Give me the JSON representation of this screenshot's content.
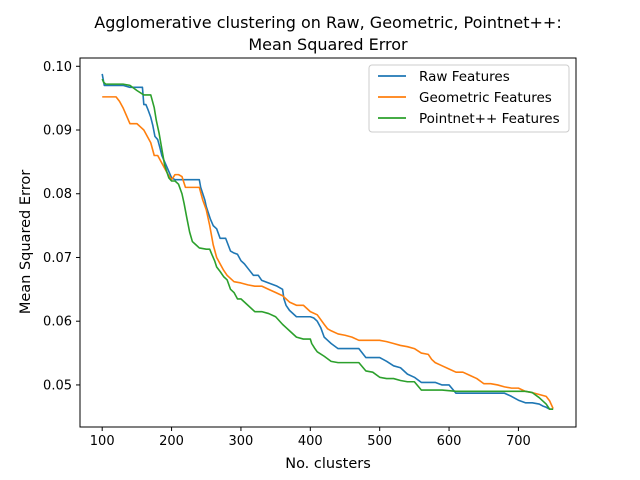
{
  "chart_data": {
    "type": "line",
    "title_line1": "Agglomerative clustering on Raw, Geometric, Pointnet++:",
    "title_line2": "Mean Squared Error",
    "xlabel": "No. clusters",
    "ylabel": "Mean Squared Error",
    "xlim": [
      68,
      783
    ],
    "ylim": [
      0.0434,
      0.1013
    ],
    "xticks": [
      100,
      200,
      300,
      400,
      500,
      600,
      700
    ],
    "yticks": [
      0.05,
      0.06,
      0.07,
      0.08,
      0.09,
      0.1
    ],
    "ytick_labels": [
      "0.05",
      "0.06",
      "0.07",
      "0.08",
      "0.09",
      "0.10"
    ],
    "grid": false,
    "legend_position": "top-right",
    "series": [
      {
        "name": "Raw Features",
        "color": "#1f77b4",
        "x": [
          100,
          103,
          105,
          110,
          120,
          130,
          140,
          150,
          158,
          160,
          163,
          166,
          170,
          173,
          176,
          180,
          183,
          186,
          190,
          194,
          198,
          200,
          205,
          210,
          215,
          225,
          240,
          242,
          245,
          248,
          250,
          253,
          256,
          260,
          265,
          270,
          278,
          285,
          290,
          295,
          300,
          305,
          310,
          318,
          325,
          330,
          340,
          352,
          360,
          362,
          365,
          370,
          380,
          390,
          400,
          405,
          410,
          415,
          420,
          425,
          430,
          440,
          450,
          460,
          470,
          480,
          490,
          500,
          510,
          520,
          530,
          540,
          550,
          560,
          570,
          580,
          590,
          600,
          610,
          620,
          630,
          640,
          650,
          660,
          670,
          680,
          690,
          700,
          710,
          720,
          730,
          735,
          740,
          745,
          750
        ],
        "y": [
          0.0988,
          0.097,
          0.097,
          0.097,
          0.097,
          0.097,
          0.0967,
          0.0967,
          0.0967,
          0.094,
          0.094,
          0.0932,
          0.092,
          0.0907,
          0.089,
          0.0885,
          0.0873,
          0.086,
          0.085,
          0.084,
          0.083,
          0.0825,
          0.0822,
          0.0822,
          0.0822,
          0.0822,
          0.0822,
          0.081,
          0.08,
          0.079,
          0.078,
          0.077,
          0.076,
          0.075,
          0.0745,
          0.073,
          0.073,
          0.071,
          0.0707,
          0.0705,
          0.0695,
          0.069,
          0.0683,
          0.0672,
          0.0672,
          0.0664,
          0.066,
          0.0655,
          0.065,
          0.0635,
          0.0625,
          0.0617,
          0.0607,
          0.0607,
          0.0607,
          0.0605,
          0.06,
          0.059,
          0.0575,
          0.057,
          0.0565,
          0.0557,
          0.0557,
          0.0557,
          0.0557,
          0.0543,
          0.0543,
          0.0543,
          0.0537,
          0.053,
          0.0527,
          0.0517,
          0.0512,
          0.0504,
          0.0504,
          0.0504,
          0.05,
          0.05,
          0.0487,
          0.0487,
          0.0487,
          0.0487,
          0.0487,
          0.0487,
          0.0487,
          0.0487,
          0.0482,
          0.0476,
          0.0472,
          0.0472,
          0.047,
          0.0467,
          0.0465,
          0.0462,
          0.0462
        ]
      },
      {
        "name": "Geometric Features",
        "color": "#ff7f0e",
        "x": [
          100,
          110,
          120,
          125,
          130,
          140,
          150,
          155,
          160,
          165,
          170,
          175,
          180,
          185,
          190,
          195,
          200,
          205,
          210,
          215,
          220,
          225,
          230,
          240,
          245,
          250,
          255,
          260,
          265,
          270,
          275,
          280,
          290,
          300,
          310,
          320,
          330,
          340,
          350,
          360,
          365,
          370,
          380,
          390,
          400,
          410,
          420,
          425,
          430,
          440,
          450,
          460,
          470,
          480,
          490,
          500,
          510,
          520,
          530,
          540,
          550,
          560,
          570,
          575,
          580,
          590,
          600,
          610,
          620,
          630,
          640,
          650,
          660,
          670,
          680,
          690,
          700,
          710,
          720,
          730,
          740,
          745,
          750
        ],
        "y": [
          0.0952,
          0.0952,
          0.0952,
          0.0945,
          0.0935,
          0.091,
          0.091,
          0.0905,
          0.09,
          0.089,
          0.088,
          0.086,
          0.086,
          0.085,
          0.084,
          0.083,
          0.0822,
          0.083,
          0.083,
          0.0827,
          0.081,
          0.081,
          0.081,
          0.081,
          0.079,
          0.0775,
          0.075,
          0.072,
          0.07,
          0.069,
          0.068,
          0.0672,
          0.0662,
          0.066,
          0.0657,
          0.0655,
          0.0655,
          0.065,
          0.0645,
          0.064,
          0.0635,
          0.063,
          0.0625,
          0.0625,
          0.0615,
          0.061,
          0.0595,
          0.0588,
          0.0585,
          0.058,
          0.0578,
          0.0575,
          0.057,
          0.057,
          0.057,
          0.057,
          0.0568,
          0.0565,
          0.0562,
          0.056,
          0.0557,
          0.055,
          0.0548,
          0.054,
          0.0535,
          0.053,
          0.0525,
          0.052,
          0.052,
          0.0515,
          0.051,
          0.0502,
          0.0502,
          0.05,
          0.0497,
          0.0495,
          0.0495,
          0.049,
          0.0488,
          0.0485,
          0.0482,
          0.0475,
          0.0463
        ]
      },
      {
        "name": "Pointnet++ Features",
        "color": "#2ca02c",
        "x": [
          100,
          102,
          105,
          110,
          120,
          130,
          140,
          150,
          160,
          170,
          175,
          178,
          182,
          186,
          190,
          193,
          196,
          200,
          205,
          210,
          215,
          218,
          222,
          226,
          230,
          235,
          240,
          250,
          255,
          258,
          262,
          265,
          270,
          275,
          280,
          285,
          290,
          295,
          300,
          310,
          320,
          330,
          340,
          350,
          360,
          365,
          370,
          380,
          390,
          400,
          402,
          406,
          410,
          420,
          430,
          440,
          450,
          460,
          470,
          480,
          490,
          500,
          510,
          520,
          530,
          540,
          550,
          560,
          570,
          580,
          590,
          600,
          610,
          620,
          630,
          640,
          650,
          660,
          670,
          680,
          690,
          700,
          710,
          720,
          730,
          740,
          745,
          750
        ],
        "y": [
          0.098,
          0.0975,
          0.0972,
          0.0972,
          0.0972,
          0.0972,
          0.097,
          0.0962,
          0.0955,
          0.0955,
          0.0935,
          0.0915,
          0.0895,
          0.087,
          0.0845,
          0.0835,
          0.0825,
          0.082,
          0.082,
          0.0815,
          0.08,
          0.0785,
          0.0762,
          0.074,
          0.0725,
          0.072,
          0.0715,
          0.0713,
          0.0713,
          0.0705,
          0.0695,
          0.0685,
          0.0678,
          0.067,
          0.0665,
          0.065,
          0.0645,
          0.0635,
          0.0635,
          0.0625,
          0.0615,
          0.0615,
          0.0612,
          0.0607,
          0.0595,
          0.059,
          0.0585,
          0.0575,
          0.0572,
          0.0572,
          0.0565,
          0.0558,
          0.0552,
          0.0545,
          0.0537,
          0.0535,
          0.0535,
          0.0535,
          0.0535,
          0.0522,
          0.052,
          0.0512,
          0.051,
          0.051,
          0.0507,
          0.0505,
          0.0505,
          0.0492,
          0.0492,
          0.0492,
          0.0492,
          0.0491,
          0.049,
          0.049,
          0.049,
          0.049,
          0.049,
          0.049,
          0.049,
          0.049,
          0.049,
          0.049,
          0.049,
          0.0488,
          0.048,
          0.047,
          0.0462,
          0.0462
        ]
      }
    ]
  }
}
